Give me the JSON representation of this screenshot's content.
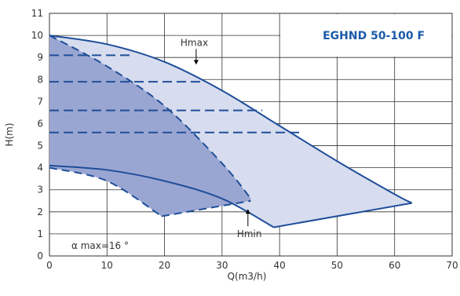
{
  "chart_data": {
    "type": "area",
    "title": "EGHND 50-100 F",
    "xlabel": "Q(m3/h)",
    "ylabel": "H(m)",
    "xlim": [
      0,
      70
    ],
    "ylim": [
      0,
      11
    ],
    "xticks": [
      0,
      10,
      20,
      30,
      40,
      50,
      60,
      70
    ],
    "yticks": [
      0,
      1,
      2,
      3,
      4,
      5,
      6,
      7,
      8,
      9,
      10,
      11
    ],
    "grid": true,
    "annotations": [
      {
        "text": "Hmax",
        "points_to": [
          25.5,
          8.6
        ]
      },
      {
        "text": "Hmin",
        "points_to": [
          34.5,
          2.2
        ]
      },
      {
        "text": "α max=16 °"
      }
    ],
    "regions": [
      {
        "name": "outer",
        "upper_curve": [
          [
            0,
            10.0
          ],
          [
            10,
            9.6
          ],
          [
            20,
            8.8
          ],
          [
            30,
            7.5
          ],
          [
            40,
            5.9
          ],
          [
            50,
            4.3
          ],
          [
            60,
            2.8
          ],
          [
            63,
            2.4
          ]
        ],
        "lower_curve": [
          [
            0,
            4.1
          ],
          [
            10,
            3.9
          ],
          [
            20,
            3.4
          ],
          [
            30,
            2.6
          ],
          [
            39,
            1.3
          ]
        ],
        "closing_line": [
          [
            39,
            1.3
          ],
          [
            63,
            2.4
          ]
        ]
      },
      {
        "name": "inner",
        "upper_curve": [
          [
            0,
            10.0
          ],
          [
            10,
            8.6
          ],
          [
            20,
            6.8
          ],
          [
            30,
            4.2
          ],
          [
            35,
            2.6
          ]
        ],
        "lower_curve": [
          [
            0,
            4.0
          ],
          [
            10,
            3.4
          ],
          [
            19.5,
            1.8
          ]
        ],
        "closing_line": [
          [
            19.5,
            1.8
          ],
          [
            35,
            2.5
          ]
        ]
      }
    ],
    "dashed_levels": [
      {
        "y": 9.1,
        "x_end": 14
      },
      {
        "y": 7.9,
        "x_end": 27
      },
      {
        "y": 6.6,
        "x_end": 37
      },
      {
        "y": 5.6,
        "x_end": 44
      }
    ],
    "colors": {
      "outer_fill": "#d7ddef",
      "inner_fill": "#9aa6d2",
      "curve": "#1f4e99",
      "grid": "#333333",
      "title": "#1a5aa8"
    }
  }
}
